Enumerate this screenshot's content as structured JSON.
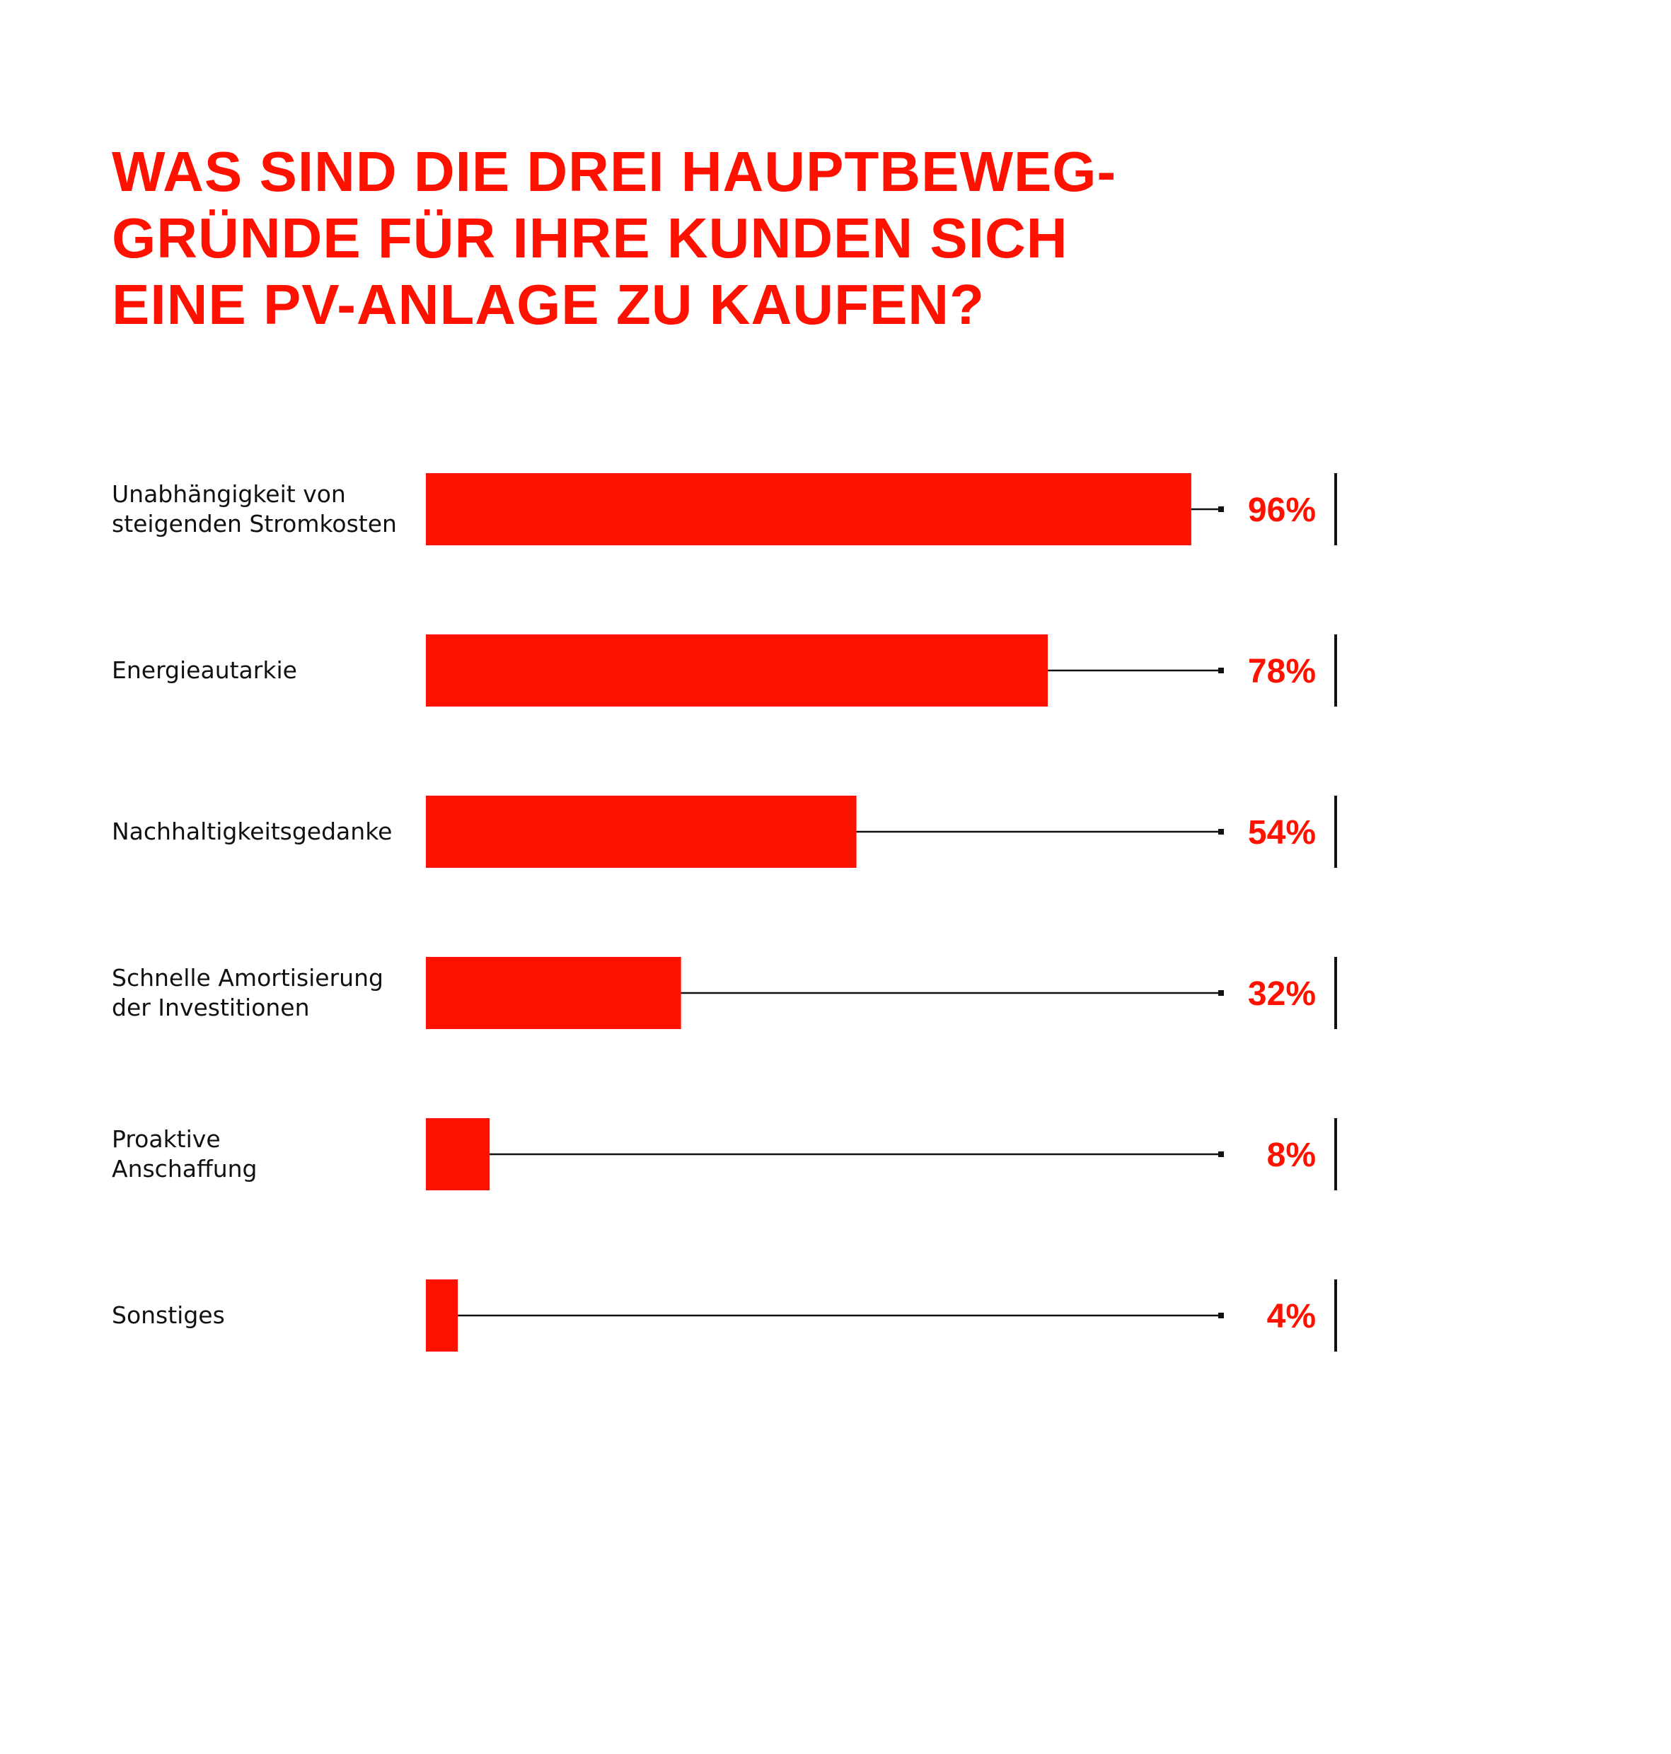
{
  "title_lines": [
    "WAS SIND DIE DREI HAUPTBEWEG-",
    "GRÜNDE FÜR IHRE KUNDEN SICH",
    "EINE PV-ANLAGE ZU KAUFEN?"
  ],
  "colors": {
    "accent": "#ff1100",
    "line": "#111111"
  },
  "chart_data": {
    "type": "bar",
    "orientation": "horizontal",
    "title": "WAS SIND DIE DREI HAUPTBEWEGGRÜNDE FÜR IHRE KUNDEN SICH EINE PV-ANLAGE ZU KAUFEN?",
    "categories": [
      [
        "Unabhängigkeit von",
        "steigenden Stromkosten"
      ],
      [
        "Energieautarkie"
      ],
      [
        "Nachhaltigkeitsgedanke"
      ],
      [
        "Schnelle Amortisierung",
        "der Investitionen"
      ],
      [
        "Proaktive",
        "Anschaffung"
      ],
      [
        "Sonstiges"
      ]
    ],
    "values": [
      96,
      78,
      54,
      32,
      8,
      4
    ],
    "value_labels": [
      "96%",
      "78%",
      "54%",
      "32%",
      "8%",
      "4%"
    ],
    "xlim": [
      0,
      100
    ],
    "unit": "%",
    "grid": false,
    "legend": "none"
  }
}
